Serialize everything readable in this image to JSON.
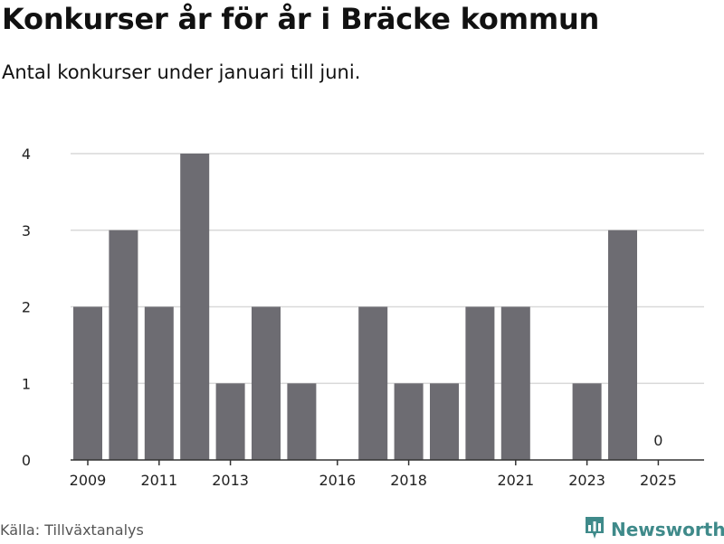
{
  "title": "Konkurser år för år i Bräcke kommun",
  "subtitle": "Antal konkurser under januari till juni.",
  "source": "Källa: Tillväxtanalys",
  "brand": {
    "name": "Newsworthy",
    "icon": "newsworthy-logo-icon",
    "color": "#3f8a8a"
  },
  "chart_data": {
    "type": "bar",
    "categories": [
      2009,
      2010,
      2011,
      2012,
      2013,
      2014,
      2015,
      2016,
      2017,
      2018,
      2019,
      2020,
      2021,
      2022,
      2023,
      2024,
      2025
    ],
    "values": [
      2,
      3,
      2,
      4,
      1,
      2,
      1,
      0,
      2,
      1,
      1,
      2,
      2,
      0,
      1,
      3,
      0
    ],
    "x_tick_labels": [
      "2009",
      "2011",
      "2013",
      "2016",
      "2018",
      "2021",
      "2023",
      "2025"
    ],
    "y_ticks": [
      0,
      1,
      2,
      3,
      4
    ],
    "ylim": [
      0,
      4
    ],
    "grid": true,
    "bar_color": "#6d6c72",
    "annotations": [
      {
        "category": 2025,
        "label": "0"
      }
    ]
  }
}
